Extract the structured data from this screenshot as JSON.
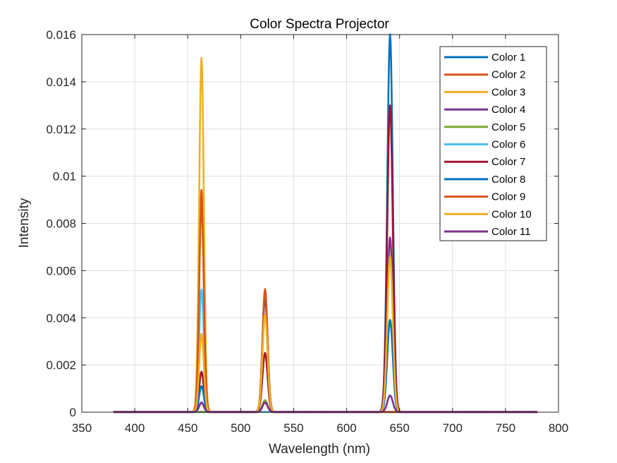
{
  "chart_data": {
    "type": "line",
    "title": "Color Spectra Projector",
    "xlabel": "Wavelength (nm)",
    "ylabel": "Intensity",
    "xlim": [
      350,
      800
    ],
    "ylim": [
      0,
      0.016
    ],
    "x_ticks": [
      350,
      400,
      450,
      500,
      550,
      600,
      650,
      700,
      750,
      800
    ],
    "x_tick_labels": [
      "350",
      "400",
      "450",
      "500",
      "550",
      "600",
      "650",
      "700",
      "750",
      "800"
    ],
    "y_ticks": [
      0,
      0.002,
      0.004,
      0.006,
      0.008,
      0.01,
      0.012,
      0.014,
      0.016
    ],
    "y_tick_labels": [
      "0",
      "0.002",
      "0.004",
      "0.006",
      "0.008",
      "0.01",
      "0.012",
      "0.014",
      "0.016"
    ],
    "grid": true,
    "legend_position": "top-right",
    "x_range_of_data": [
      380,
      780
    ],
    "peak_wavelengths": [
      463,
      523,
      641
    ],
    "series": [
      {
        "name": "Color 1",
        "color": "#0072BD",
        "peaks": [
          0.0,
          0.005,
          0.016
        ]
      },
      {
        "name": "Color 2",
        "color": "#D95319",
        "peaks": [
          0.0094,
          0.0052,
          0.0
        ]
      },
      {
        "name": "Color 3",
        "color": "#EDB120",
        "peaks": [
          0.015,
          0.0,
          0.0
        ]
      },
      {
        "name": "Color 4",
        "color": "#7E2F8E",
        "peaks": [
          0.0004,
          0.0004,
          0.0074
        ]
      },
      {
        "name": "Color 5",
        "color": "#77AC30",
        "peaks": [
          0.0,
          0.0005,
          0.0
        ]
      },
      {
        "name": "Color 6",
        "color": "#4DBEEE",
        "peaks": [
          0.0052,
          0.0,
          0.0
        ]
      },
      {
        "name": "Color 7",
        "color": "#A2142F",
        "peaks": [
          0.0017,
          0.0025,
          0.013
        ]
      },
      {
        "name": "Color 8",
        "color": "#0072BD",
        "peaks": [
          0.0011,
          0.0048,
          0.0039
        ]
      },
      {
        "name": "Color 9",
        "color": "#D95319",
        "peaks": [
          0.0088,
          0.0051,
          0.0
        ]
      },
      {
        "name": "Color 10",
        "color": "#EDB120",
        "peaks": [
          0.0033,
          0.0041,
          0.0066
        ]
      },
      {
        "name": "Color 11",
        "color": "#7E2F8E",
        "peaks": [
          0.0004,
          0.0004,
          0.0007
        ]
      }
    ]
  }
}
